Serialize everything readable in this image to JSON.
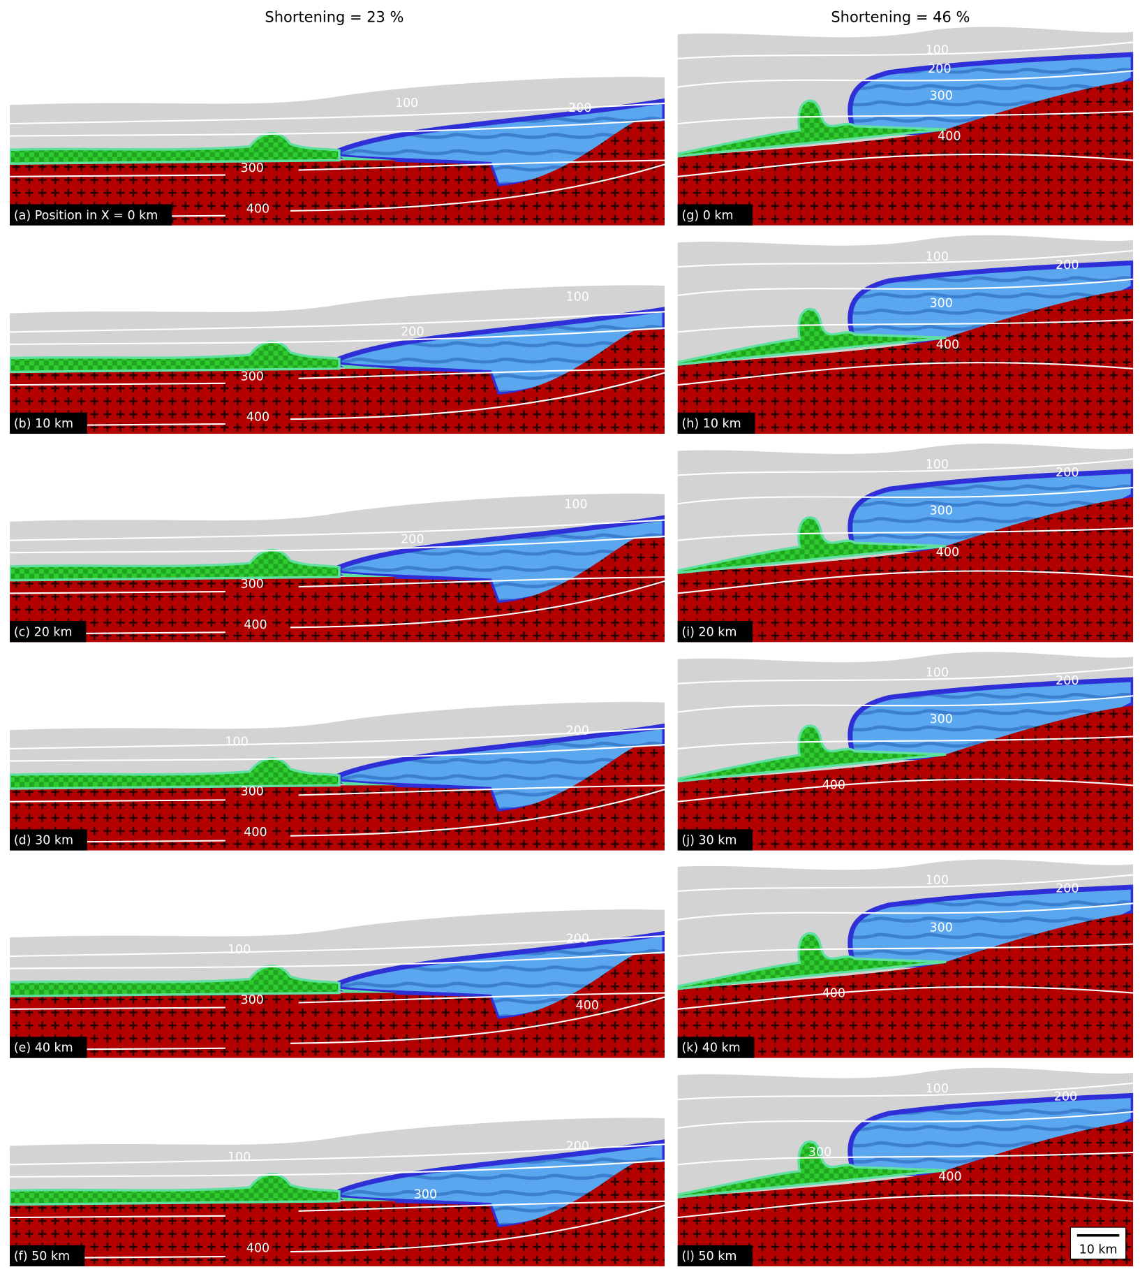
{
  "column_titles": [
    "Shortening = 23 %",
    "Shortening  = 46 %"
  ],
  "panels": [
    {
      "label": "(a) Position in X = 0 km",
      "contour_labels": [
        100,
        200,
        300,
        400
      ]
    },
    {
      "label": "(b) 10 km",
      "contour_labels": [
        100,
        200,
        300,
        400
      ]
    },
    {
      "label": "(c) 20 km",
      "contour_labels": [
        100,
        200,
        300,
        400
      ]
    },
    {
      "label": "(d) 30 km",
      "contour_labels": [
        100,
        200,
        300,
        400
      ]
    },
    {
      "label": "(e) 40 km",
      "contour_labels": [
        100,
        200,
        300,
        400
      ]
    },
    {
      "label": "(f) 50 km",
      "contour_labels": [
        100,
        200,
        300,
        400
      ]
    },
    {
      "label": "(g) 0 km",
      "contour_labels": [
        100,
        200,
        300,
        400
      ]
    },
    {
      "label": "(h) 10 km",
      "contour_labels": [
        100,
        200,
        300,
        400
      ]
    },
    {
      "label": "(i) 20 km",
      "contour_labels": [
        100,
        200,
        300,
        400
      ]
    },
    {
      "label": "(j) 30 km",
      "contour_labels": [
        100,
        200,
        300,
        400
      ]
    },
    {
      "label": "(k) 40 km",
      "contour_labels": [
        100,
        200,
        300,
        400
      ]
    },
    {
      "label": "(l) 50 km",
      "contour_labels": [
        100,
        200,
        300,
        400
      ]
    }
  ],
  "scale_bar": "10 km"
}
